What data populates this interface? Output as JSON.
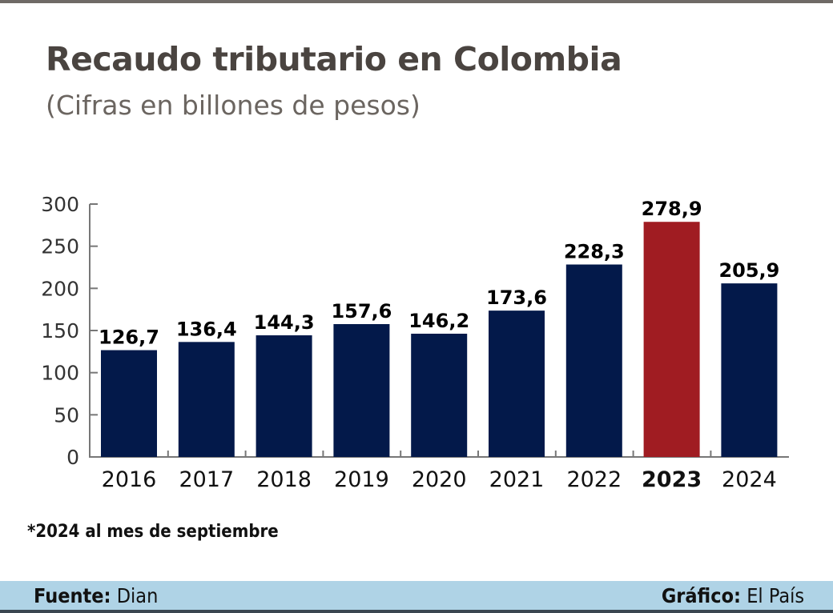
{
  "chart_data": {
    "type": "bar",
    "title": "Recaudo tributario en Colombia",
    "subtitle": "(Cifras en billones de pesos)",
    "categories": [
      "2016",
      "2017",
      "2018",
      "2019",
      "2020",
      "2021",
      "2022",
      "2023",
      "2024"
    ],
    "values": [
      126.7,
      136.4,
      144.3,
      157.6,
      146.2,
      173.6,
      228.3,
      278.9,
      205.9
    ],
    "data_labels": [
      "126,7",
      "136,4",
      "144,3",
      "157,6",
      "146,2",
      "173,6",
      "228,3",
      "278,9",
      "205,9"
    ],
    "ylim": [
      0,
      300
    ],
    "yticks": [
      "0",
      "50",
      "100",
      "150",
      "200",
      "250",
      "300"
    ],
    "grid": false,
    "highlight": "2023",
    "colors": {
      "bar": "#03194a",
      "highlight": "#a01c22",
      "axis": "#777777"
    },
    "note": "*2024 al mes de septiembre"
  },
  "footer": {
    "source_label": "Fuente:",
    "source_value": "Dian",
    "credit_label": "Gráfico:",
    "credit_value": "El País"
  }
}
